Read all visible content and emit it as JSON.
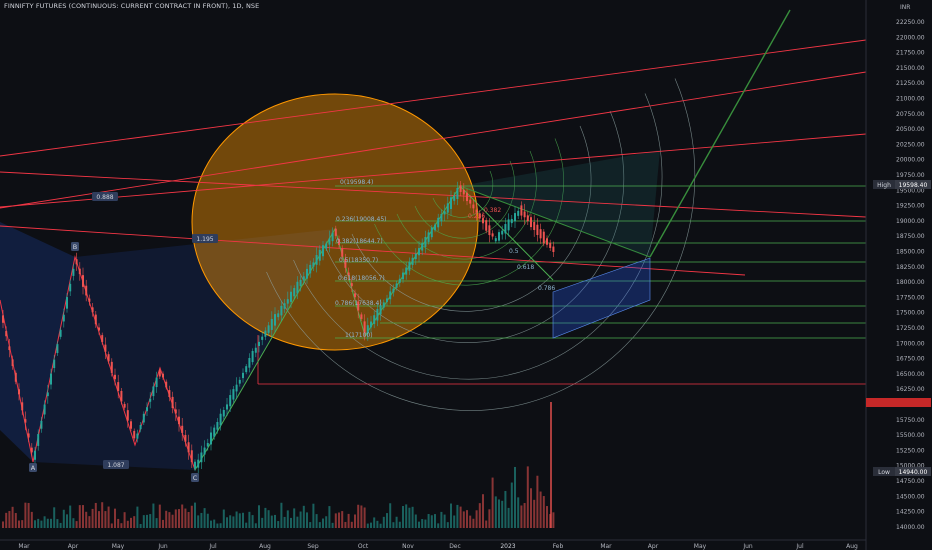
{
  "header": {
    "title": "FINNIFTY FUTURES (CONTINUOUS: CURRENT CONTRACT IN FRONT), 1D, NSE",
    "currency": "INR"
  },
  "price_axis": {
    "ticks": [
      "22250.00",
      "22000.00",
      "21750.00",
      "21500.00",
      "21250.00",
      "21000.00",
      "20750.00",
      "20500.00",
      "20250.00",
      "20000.00",
      "19750.00",
      "19500.00",
      "19250.00",
      "19000.00",
      "18750.00",
      "18500.00",
      "18250.00",
      "18000.00",
      "17750.00",
      "17500.00",
      "17250.00",
      "17000.00",
      "16750.00",
      "16500.00",
      "16250.00",
      "16000.00",
      "15750.00",
      "15500.00",
      "15250.00",
      "15000.00",
      "14750.00",
      "14500.00",
      "14250.00",
      "14000.00"
    ],
    "high_label": "High",
    "high_value": "19598.40",
    "low_label": "Low",
    "low_value": "14940.00"
  },
  "time_axis": {
    "months": [
      "Mar",
      "Apr",
      "May",
      "Jun",
      "Jul",
      "Aug",
      "Sep",
      "Oct",
      "Nov",
      "Dec",
      "2023",
      "Feb",
      "Mar",
      "Apr",
      "May",
      "Jun",
      "Jul",
      "Aug"
    ]
  },
  "pattern_points": [
    "A",
    "B",
    "C"
  ],
  "pattern_ratios": [
    "0.888",
    "1.087",
    "1.195"
  ],
  "fib_labels": [
    "0(19598.4)",
    "0.236(19008.45)",
    "0.382(18644.7)",
    "0.5(18350.7)",
    "0.618(18056.7)",
    "0.786(17638.4)",
    "1(17100)"
  ],
  "fib_small_labels": [
    "0.236",
    "0.382",
    "0.5",
    "0.618",
    "0.786"
  ],
  "chart_data": {
    "type": "candlestick",
    "instrument": "FINNIFTY FUTURES",
    "interval": "1D",
    "ylim": [
      14000,
      22300
    ],
    "series_high": 19598.4,
    "series_low": 14940.0,
    "colors": {
      "up": "#26a69a",
      "down": "#ef5350",
      "fib_line": "#4caf50",
      "trend_line": "#f23645",
      "fill_orange": "#ff9800",
      "fill_blue": "#2962ff"
    }
  }
}
